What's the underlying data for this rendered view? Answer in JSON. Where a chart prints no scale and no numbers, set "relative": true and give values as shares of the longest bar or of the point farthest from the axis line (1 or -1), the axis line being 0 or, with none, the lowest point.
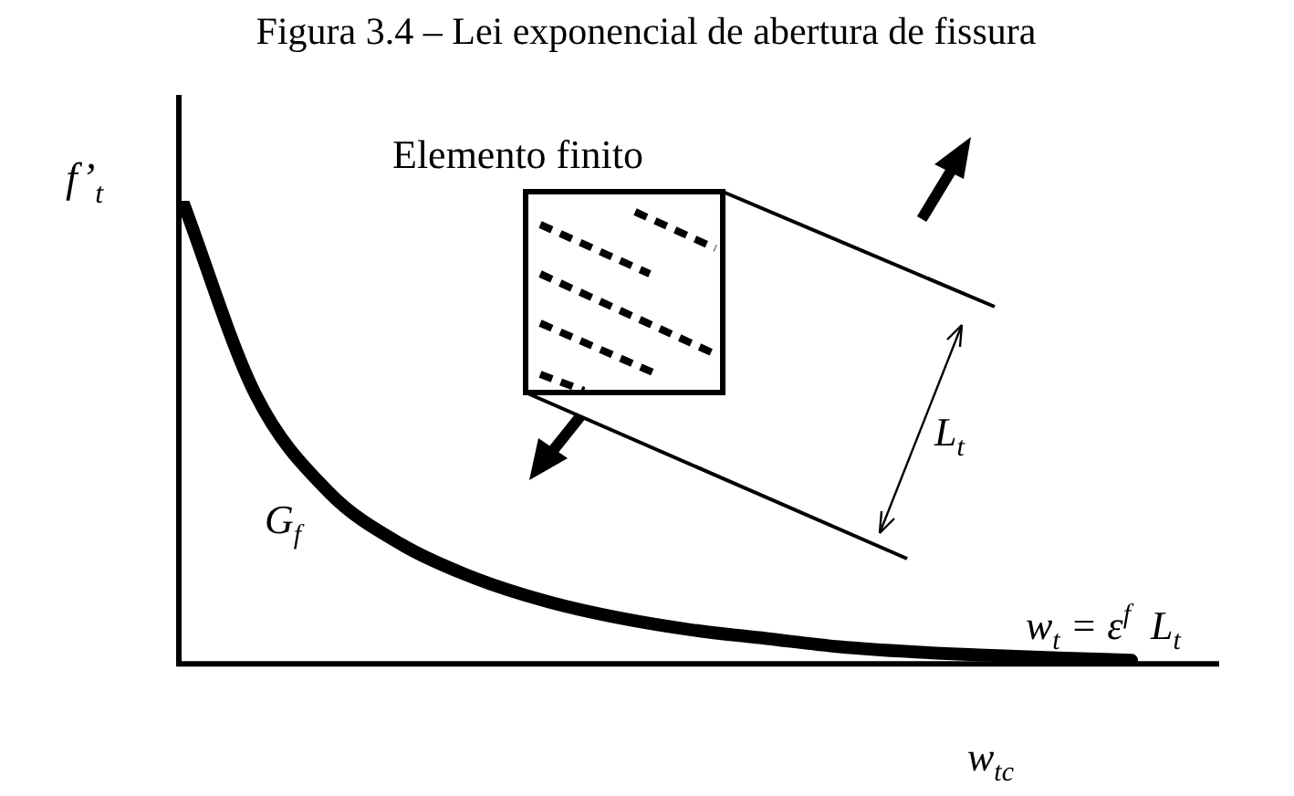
{
  "chart_data": {
    "type": "line",
    "relative": true,
    "title": "Figura 3.4 – Lei exponencial de abertura de fissura",
    "ylabel": "f’$_{t}$",
    "xlabel": "w$_{tc}$",
    "categories": [
      null,
      null,
      null,
      null,
      null,
      null,
      null,
      null,
      null,
      null,
      null,
      null,
      null,
      null
    ],
    "series": [
      {
        "color": "#000000",
        "values": [
          1,
          0.58,
          0.369,
          0.255,
          0.182,
          0.131,
          0.095,
          0.069,
          0.051,
          0.033,
          0.022,
          0.015,
          0.009,
          0.004
        ]
      }
    ],
    "annotations": [
      "Elemento finito",
      "G$_{f}$",
      "L$_{t}$",
      "w$_{t}$ = ε$^{f}$  L$_{t}$"
    ],
    "grid": false,
    "legend": false,
    "marker": "none",
    "line_style": "solid"
  }
}
